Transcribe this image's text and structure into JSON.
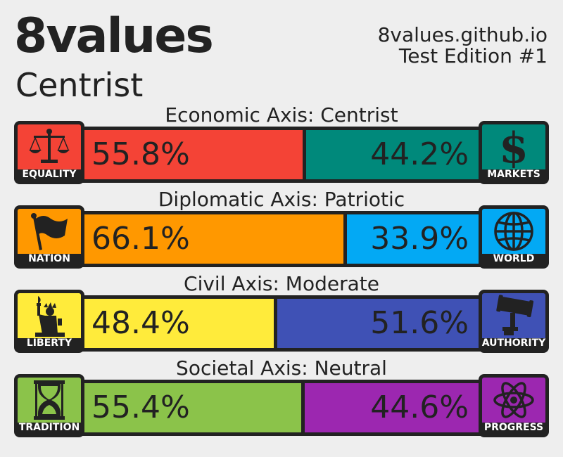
{
  "header": {
    "title": "8values",
    "ideology": "Centrist",
    "site": "8values.github.io",
    "edition": "Test Edition #1"
  },
  "chart_data": {
    "type": "bar",
    "orientation": "horizontal",
    "stacked": true,
    "percent_scale": [
      0,
      100
    ],
    "axes": [
      {
        "label": "Economic Axis: Centrist",
        "left": {
          "name": "EQUALITY",
          "value": 55.8,
          "text": "55.8%",
          "color": "#f44336",
          "icon": "scales-icon"
        },
        "right": {
          "name": "MARKETS",
          "value": 44.2,
          "text": "44.2%",
          "color": "#00897b",
          "icon": "dollar-icon"
        }
      },
      {
        "label": "Diplomatic Axis: Patriotic",
        "left": {
          "name": "NATION",
          "value": 66.1,
          "text": "66.1%",
          "color": "#ff9800",
          "icon": "flag-icon"
        },
        "right": {
          "name": "WORLD",
          "value": 33.9,
          "text": "33.9%",
          "color": "#03a9f4",
          "icon": "globe-icon"
        }
      },
      {
        "label": "Civil Axis: Moderate",
        "left": {
          "name": "LIBERTY",
          "value": 48.4,
          "text": "48.4%",
          "color": "#ffeb3b",
          "icon": "statue-of-liberty-icon"
        },
        "right": {
          "name": "AUTHORITY",
          "value": 51.6,
          "text": "51.6%",
          "color": "#3f51b5",
          "icon": "gavel-icon"
        }
      },
      {
        "label": "Societal Axis: Neutral",
        "left": {
          "name": "TRADITION",
          "value": 55.4,
          "text": "55.4%",
          "color": "#8bc34a",
          "icon": "hourglass-icon"
        },
        "right": {
          "name": "PROGRESS",
          "value": 44.6,
          "text": "44.6%",
          "color": "#9c27b0",
          "icon": "atom-icon"
        }
      }
    ]
  }
}
